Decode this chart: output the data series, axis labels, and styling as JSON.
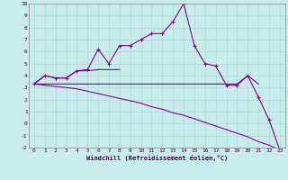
{
  "xlabel": "Windchill (Refroidissement éolien,°C)",
  "background_color": "#c8ecec",
  "grid_color": "#b0d8d8",
  "line_color": "#880088",
  "x_hours": [
    0,
    1,
    2,
    3,
    4,
    5,
    6,
    7,
    8,
    9,
    10,
    11,
    12,
    13,
    14,
    15,
    16,
    17,
    18,
    19,
    20,
    21,
    22,
    23
  ],
  "line1_y": [
    3.3,
    4.0,
    3.8,
    3.8,
    4.4,
    4.5,
    6.2,
    5.0,
    6.5,
    6.5,
    7.0,
    7.5,
    7.5,
    8.5,
    10.0,
    6.5,
    5.0,
    4.8,
    3.2,
    3.2,
    4.0,
    2.2,
    0.3,
    -2.2
  ],
  "line2_y": [
    3.3,
    4.0,
    3.8,
    3.8,
    4.4,
    4.4,
    4.5,
    4.5,
    4.5,
    null,
    null,
    null,
    null,
    null,
    null,
    null,
    null,
    null,
    null,
    null,
    null,
    null,
    null,
    null
  ],
  "line3_y": [
    3.3,
    3.3,
    3.3,
    3.3,
    3.3,
    3.3,
    3.3,
    3.3,
    3.3,
    3.3,
    3.3,
    3.3,
    3.3,
    3.3,
    3.3,
    3.3,
    3.3,
    3.3,
    3.3,
    3.3,
    4.0,
    3.3,
    null,
    null
  ],
  "line4_y": [
    3.3,
    3.2,
    3.1,
    3.0,
    2.9,
    2.7,
    2.5,
    2.3,
    2.1,
    1.9,
    1.7,
    1.4,
    1.2,
    0.9,
    0.7,
    0.4,
    0.1,
    -0.2,
    -0.5,
    -0.8,
    -1.1,
    -1.5,
    -1.8,
    -2.2
  ],
  "ylim": [
    -2,
    10
  ],
  "xlim_min": -0.5,
  "xlim_max": 23.5,
  "yticks": [
    -2,
    -1,
    0,
    1,
    2,
    3,
    4,
    5,
    6,
    7,
    8,
    9,
    10
  ],
  "xticks": [
    0,
    1,
    2,
    3,
    4,
    5,
    6,
    7,
    8,
    9,
    10,
    11,
    12,
    13,
    14,
    15,
    16,
    17,
    18,
    19,
    20,
    21,
    22,
    23
  ]
}
